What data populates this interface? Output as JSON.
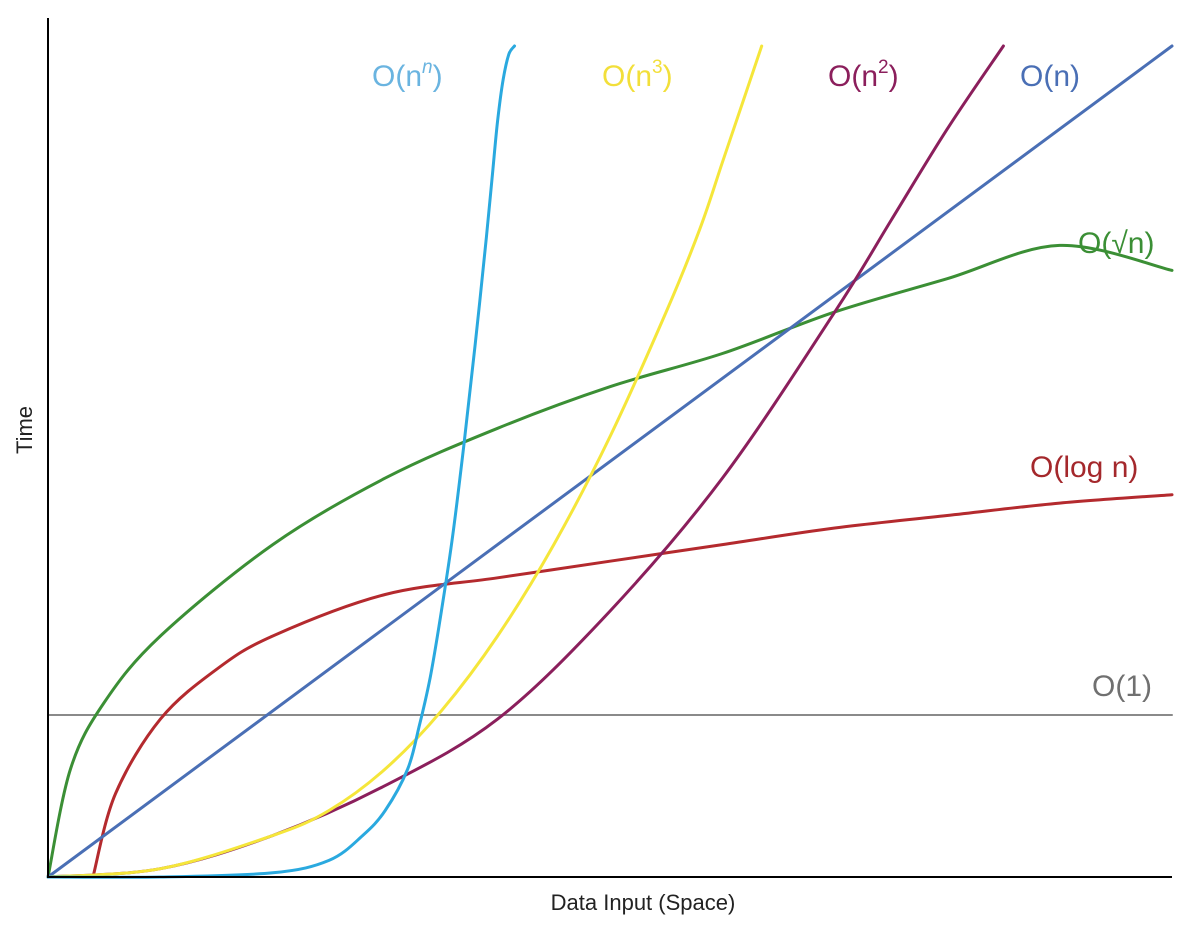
{
  "chart_data": {
    "type": "line",
    "title": "",
    "xlabel": "Data Input (Space)",
    "ylabel": "Time",
    "xlim": [
      0,
      10
    ],
    "ylim": [
      0,
      10
    ],
    "grid": false,
    "legend": "none",
    "series": [
      {
        "label_base": "O(n",
        "label_sup": "n",
        "label_close": ")",
        "color": "#2aa9df",
        "label_color": "#6ab4e0",
        "fn": "nn",
        "x": [
          0,
          1,
          2,
          2.5,
          2.8,
          3.0,
          3.2,
          3.3,
          3.4,
          3.5,
          3.6,
          3.7,
          3.8,
          3.9,
          3.95,
          4.0,
          4.05,
          4.1,
          4.15
        ],
        "y": [
          0,
          0,
          0.05,
          0.2,
          0.5,
          0.8,
          1.3,
          1.8,
          2.4,
          3.2,
          4.1,
          5.2,
          6.4,
          7.7,
          8.4,
          9.1,
          9.6,
          9.9,
          10
        ]
      },
      {
        "label_base": "O(n",
        "label_sup": "3",
        "label_close": ")",
        "color": "#f5e63a",
        "label_color": "#f2df3a",
        "fn": "n3",
        "x": [
          0,
          1,
          2,
          2.5,
          3,
          3.5,
          4,
          4.5,
          5,
          5.5,
          5.8,
          6.0,
          6.2,
          6.35
        ],
        "y": [
          0,
          0.1,
          0.5,
          0.8,
          1.3,
          2.0,
          2.9,
          4.0,
          5.3,
          6.8,
          7.8,
          8.6,
          9.4,
          10
        ]
      },
      {
        "label_base": "O(n",
        "label_sup": "2",
        "label_close": ")",
        "color": "#8b1f5c",
        "label_color": "#8b1f5c",
        "fn": "n2",
        "x": [
          0,
          1,
          2,
          3,
          4,
          5,
          6,
          7,
          7.5,
          8,
          8.5
        ],
        "y": [
          0,
          0.1,
          0.5,
          1.1,
          1.9,
          3.2,
          4.8,
          6.8,
          7.9,
          9.0,
          10
        ]
      },
      {
        "label_base": "O(n)",
        "label_sup": "",
        "label_close": "",
        "color": "#4a6fb5",
        "label_color": "#4a6fb5",
        "fn": "n",
        "x": [
          0,
          10
        ],
        "y": [
          0,
          10
        ]
      },
      {
        "label_base": "O(√n)",
        "label_sup": "",
        "label_close": "",
        "color": "#3b8f35",
        "label_color": "#3b8f35",
        "fn": "sqrt",
        "x": [
          0,
          0.2,
          0.5,
          1,
          2,
          3,
          4,
          5,
          6,
          7,
          8,
          9,
          10
        ],
        "y": [
          0,
          1.3,
          2.1,
          2.9,
          4.0,
          4.8,
          5.4,
          5.9,
          6.3,
          6.8,
          7.2,
          7.6,
          7.3
        ]
      },
      {
        "label_base": "O(log n)",
        "label_sup": "",
        "label_close": "",
        "color": "#b42a2e",
        "label_color": "#a4282c",
        "fn": "log",
        "x": [
          0.4,
          0.6,
          1,
          1.5,
          2,
          3,
          4,
          5,
          6,
          7,
          8,
          9,
          10
        ],
        "y": [
          0,
          1.0,
          1.9,
          2.5,
          2.9,
          3.4,
          3.6,
          3.8,
          4.0,
          4.2,
          4.35,
          4.5,
          4.6
        ]
      },
      {
        "label_base": "O(1)",
        "label_sup": "",
        "label_close": "",
        "color": "#8a8a8a",
        "label_color": "#707070",
        "fn": "const",
        "x": [
          0,
          10
        ],
        "y": [
          1.95,
          1.95
        ]
      }
    ]
  }
}
